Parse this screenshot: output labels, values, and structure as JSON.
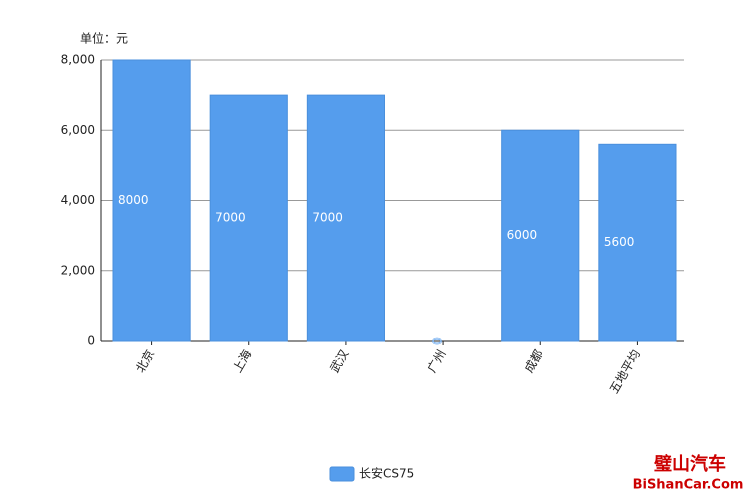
{
  "chart_data": {
    "type": "bar",
    "y_axis_label": "单位：元",
    "categories": [
      "北京",
      "上海",
      "武汉",
      "广州",
      "成都",
      "五地平均"
    ],
    "series": [
      {
        "name": "长安CS75",
        "color": "#559ded",
        "values": [
          8000,
          7000,
          7000,
          0,
          6000,
          5600
        ]
      }
    ],
    "ylim": [
      0,
      8000
    ],
    "yticks": [
      0,
      {
        "value": 2000,
        "label": "2,000"
      },
      {
        "value": 4000,
        "label": "4,000"
      },
      {
        "value": 6000,
        "label": "6,000"
      },
      {
        "value": 8000,
        "label": "8,000"
      }
    ],
    "grid": true,
    "legend": "bottom",
    "watermark": [
      "璧山汽车",
      "BiShanCar.Com"
    ]
  }
}
